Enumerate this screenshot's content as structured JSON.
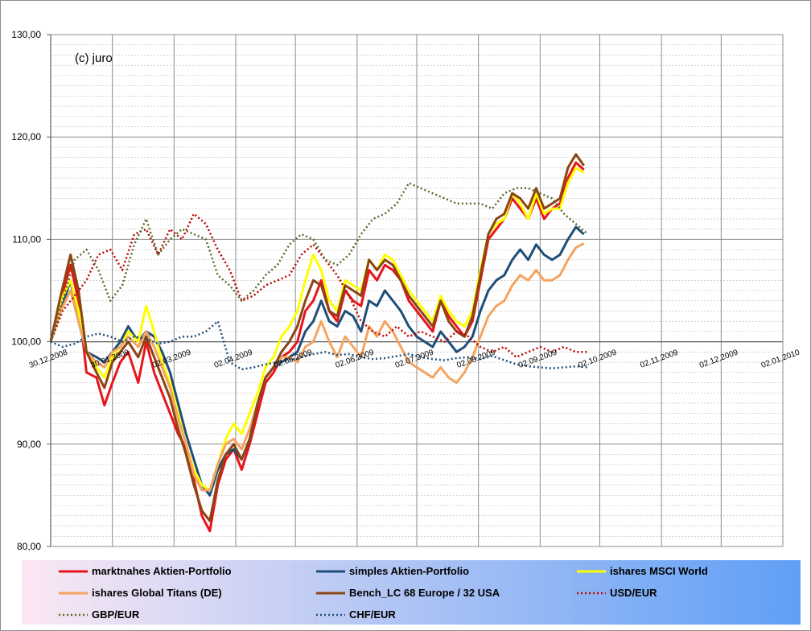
{
  "chart_data": {
    "type": "line",
    "annotation": "(c) juro",
    "title": "",
    "xlabel": "",
    "ylabel": "",
    "ylim": [
      80,
      130
    ],
    "y_ticks": [
      "80,00",
      "90,00",
      "100,00",
      "110,00",
      "120,00",
      "130,00"
    ],
    "y_tick_values": [
      80,
      90,
      100,
      110,
      120,
      130
    ],
    "x_ticks": [
      "30.12.2008",
      "30.01.2009",
      "02.03.2009",
      "02.04.2009",
      "02.05.2009",
      "02.06.2009",
      "02.07.2009",
      "02.08.2009",
      "02.09.2009",
      "02.10.2009",
      "02.11.2009",
      "02.12.2009",
      "02.01.2010"
    ],
    "x_tick_values": [
      0,
      31,
      62,
      93,
      123,
      154,
      184,
      215,
      246,
      276,
      307,
      337,
      368
    ],
    "xlim": [
      0,
      368
    ],
    "grid": true,
    "legend_position": "bottom",
    "series": [
      {
        "name": "marktnahes Aktien-Portfolio",
        "color": "#e8141c",
        "style": "solid",
        "width": 3,
        "x": [
          0,
          5,
          10,
          14,
          18,
          23,
          27,
          31,
          35,
          39,
          44,
          48,
          52,
          56,
          60,
          64,
          68,
          72,
          76,
          80,
          84,
          88,
          92,
          96,
          100,
          104,
          108,
          112,
          116,
          120,
          124,
          128,
          132,
          136,
          140,
          144,
          148,
          152,
          156,
          160,
          164,
          168,
          172,
          176,
          180,
          184,
          188,
          192,
          196,
          200,
          204,
          208,
          212,
          216,
          220,
          224,
          228,
          232,
          236,
          240,
          244,
          248,
          252,
          256,
          260,
          264,
          268
        ],
        "values": [
          100,
          104,
          107.5,
          104,
          97,
          96.5,
          93.8,
          96,
          98,
          99,
          96,
          100,
          97,
          95,
          93,
          91,
          89.6,
          86.5,
          83,
          81.5,
          86,
          88.5,
          89.5,
          87.5,
          90,
          93,
          96,
          97,
          98.5,
          99,
          100,
          103,
          104,
          106,
          103,
          102,
          105,
          104,
          103.5,
          107,
          106,
          107.5,
          107,
          106,
          104,
          103,
          102,
          101,
          104,
          102.5,
          101.5,
          100.5,
          102,
          106,
          110,
          111,
          112,
          114,
          113,
          112,
          114,
          112,
          113,
          113.5,
          116,
          117.5,
          116.8
        ]
      },
      {
        "name": "simples Aktien-Portfolio",
        "color": "#1f4e79",
        "style": "solid",
        "width": 3,
        "x": [
          0,
          5,
          10,
          14,
          18,
          23,
          27,
          31,
          35,
          39,
          44,
          48,
          52,
          56,
          60,
          64,
          68,
          72,
          76,
          80,
          84,
          88,
          92,
          96,
          100,
          104,
          108,
          112,
          116,
          120,
          124,
          128,
          132,
          136,
          140,
          144,
          148,
          152,
          156,
          160,
          164,
          168,
          172,
          176,
          180,
          184,
          188,
          192,
          196,
          200,
          204,
          208,
          212,
          216,
          220,
          224,
          228,
          232,
          236,
          240,
          244,
          248,
          252,
          256,
          260,
          264,
          268
        ],
        "values": [
          100,
          103,
          106,
          102,
          99,
          98.5,
          98,
          99,
          100,
          101.5,
          100,
          101,
          100.5,
          99,
          97,
          94,
          91,
          88.5,
          86,
          85,
          87.5,
          89,
          89.5,
          88.5,
          90.5,
          94,
          96.5,
          97.5,
          98,
          98.5,
          99,
          101,
          102,
          104,
          102,
          101.5,
          103,
          102.5,
          101,
          104,
          103.5,
          105,
          104,
          103,
          101.5,
          100.5,
          100,
          99.5,
          101,
          100,
          99,
          99.5,
          100.5,
          103,
          105,
          106,
          106.5,
          108,
          109,
          108,
          109.5,
          108.5,
          108,
          108.5,
          110,
          111.2,
          110.5
        ]
      },
      {
        "name": "ishares MSCI World",
        "color": "#ffff00",
        "style": "solid",
        "width": 3,
        "x": [
          0,
          5,
          10,
          14,
          18,
          23,
          27,
          31,
          35,
          39,
          44,
          48,
          52,
          56,
          60,
          64,
          68,
          72,
          76,
          80,
          84,
          88,
          92,
          96,
          100,
          104,
          108,
          112,
          116,
          120,
          124,
          128,
          132,
          136,
          140,
          144,
          148,
          152,
          156,
          160,
          164,
          168,
          172,
          176,
          180,
          184,
          188,
          192,
          196,
          200,
          204,
          208,
          212,
          216,
          220,
          224,
          228,
          232,
          236,
          240,
          244,
          248,
          252,
          256,
          260,
          264,
          268
        ],
        "values": [
          100,
          104,
          106,
          103,
          99,
          97.5,
          96.5,
          98.5,
          99.5,
          101,
          100,
          103.5,
          101,
          98,
          96,
          93,
          90,
          87.5,
          86,
          85.5,
          88,
          90.5,
          92,
          91,
          93,
          95,
          97.5,
          98.5,
          100.5,
          101.5,
          103,
          106,
          108.5,
          107,
          104,
          103,
          106,
          105.5,
          105,
          108,
          107,
          108.5,
          108,
          106.5,
          105,
          104,
          103,
          102,
          104.5,
          103,
          102,
          101.5,
          103,
          107,
          110.5,
          111.5,
          112,
          114.5,
          113.5,
          112,
          114.5,
          112.5,
          113,
          113,
          115.5,
          117,
          116.5
        ]
      },
      {
        "name": "ishares Global Titans (DE)",
        "color": "#f4a460",
        "style": "solid",
        "width": 3,
        "x": [
          0,
          5,
          10,
          14,
          18,
          23,
          27,
          31,
          35,
          39,
          44,
          48,
          52,
          56,
          60,
          64,
          68,
          72,
          76,
          80,
          84,
          88,
          92,
          96,
          100,
          104,
          108,
          112,
          116,
          120,
          124,
          128,
          132,
          136,
          140,
          144,
          148,
          152,
          156,
          160,
          164,
          168,
          172,
          176,
          180,
          184,
          188,
          192,
          196,
          200,
          204,
          208,
          212,
          216,
          220,
          224,
          228,
          232,
          236,
          240,
          244,
          248,
          252,
          256,
          260,
          264,
          268
        ],
        "values": [
          100,
          103,
          105,
          102,
          99,
          98,
          97.5,
          99,
          99.5,
          100.5,
          99.5,
          101,
          99.5,
          97.5,
          95.5,
          92.5,
          90,
          87,
          85.5,
          85.5,
          88,
          90,
          90.5,
          89.5,
          91.5,
          94,
          96.5,
          97.5,
          98.5,
          98.5,
          98,
          99.5,
          100,
          102,
          100,
          98.5,
          100.5,
          99.5,
          98.5,
          101.5,
          100.5,
          102,
          101,
          99.5,
          98,
          97.5,
          97,
          96.5,
          97.5,
          96.5,
          96,
          97,
          98.5,
          100.5,
          102.5,
          103.5,
          104,
          105.5,
          106.5,
          106,
          107,
          106,
          106,
          106.5,
          108,
          109.2,
          109.6
        ]
      },
      {
        "name": "Bench_LC  68 Europe / 32 USA",
        "color": "#8b4513",
        "style": "solid",
        "width": 3,
        "x": [
          0,
          5,
          10,
          14,
          18,
          23,
          27,
          31,
          35,
          39,
          44,
          48,
          52,
          56,
          60,
          64,
          68,
          72,
          76,
          80,
          84,
          88,
          92,
          96,
          100,
          104,
          108,
          112,
          116,
          120,
          124,
          128,
          132,
          136,
          140,
          144,
          148,
          152,
          156,
          160,
          164,
          168,
          172,
          176,
          180,
          184,
          188,
          192,
          196,
          200,
          204,
          208,
          212,
          216,
          220,
          224,
          228,
          232,
          236,
          240,
          244,
          248,
          252,
          256,
          260,
          264,
          268
        ],
        "values": [
          100,
          104.5,
          108.5,
          105,
          99,
          97,
          95.5,
          98,
          99,
          100,
          98.5,
          100.5,
          98.5,
          96.5,
          94.5,
          91.5,
          89,
          86,
          83.5,
          82.5,
          86.5,
          89,
          90,
          88.5,
          90.5,
          94,
          96.5,
          97.5,
          99,
          100,
          101.5,
          104,
          106,
          105.5,
          103,
          102.5,
          105.5,
          105,
          104.5,
          108,
          107,
          108,
          107.5,
          106,
          104.5,
          103.5,
          102.5,
          101.5,
          104,
          102,
          101,
          100.5,
          102.5,
          106.5,
          110.5,
          112,
          112.5,
          114.5,
          114,
          113,
          115,
          113,
          113.5,
          114,
          117,
          118.3,
          117.2
        ]
      },
      {
        "name": "USD/EUR",
        "color": "#c00000",
        "style": "dotted",
        "width": 2.5,
        "x": [
          0,
          6,
          12,
          18,
          24,
          30,
          36,
          42,
          48,
          54,
          60,
          66,
          72,
          78,
          84,
          90,
          96,
          102,
          108,
          114,
          120,
          126,
          132,
          138,
          144,
          150,
          156,
          162,
          168,
          174,
          180,
          186,
          192,
          198,
          204,
          210,
          216,
          222,
          228,
          234,
          240,
          246,
          252,
          258,
          264,
          270
        ],
        "values": [
          100,
          103,
          104.5,
          106,
          108.5,
          109,
          107,
          110.5,
          111,
          108.5,
          111,
          110,
          112.5,
          111.5,
          109,
          107,
          104,
          104.5,
          105.5,
          106,
          106.5,
          108.5,
          109.5,
          108,
          106.5,
          104.5,
          102,
          101,
          100.5,
          101.5,
          100.5,
          101,
          100.5,
          100,
          101,
          100.5,
          99.5,
          99,
          99.5,
          98.5,
          99,
          99.5,
          99,
          99.5,
          99,
          99
        ]
      },
      {
        "name": "GBP/EUR",
        "color": "#5a6a2a",
        "style": "dotted",
        "width": 2.5,
        "x": [
          0,
          6,
          12,
          18,
          24,
          30,
          36,
          42,
          48,
          54,
          60,
          66,
          72,
          78,
          84,
          90,
          96,
          102,
          108,
          114,
          120,
          126,
          132,
          138,
          144,
          150,
          156,
          162,
          168,
          174,
          180,
          186,
          192,
          198,
          204,
          210,
          216,
          222,
          228,
          234,
          240,
          246,
          252,
          258,
          264,
          270
        ],
        "values": [
          100,
          104,
          108,
          109,
          107,
          104,
          105.5,
          109.5,
          112,
          108.5,
          110,
          111,
          110.5,
          110,
          106.5,
          105.5,
          104,
          105,
          106.5,
          107.5,
          109.5,
          110.5,
          110,
          108,
          107.5,
          108.5,
          110.5,
          112,
          112.5,
          113.5,
          115.5,
          115,
          114.5,
          114,
          113.5,
          113.5,
          113.5,
          113,
          114.5,
          115,
          115,
          114.5,
          114,
          112.5,
          111.5,
          110.5
        ]
      },
      {
        "name": "CHF/EUR",
        "color": "#1f4e79",
        "style": "dotted",
        "width": 2.5,
        "x": [
          0,
          6,
          12,
          18,
          24,
          30,
          36,
          42,
          48,
          54,
          60,
          66,
          72,
          78,
          84,
          90,
          96,
          102,
          108,
          114,
          120,
          126,
          132,
          138,
          144,
          150,
          156,
          162,
          168,
          174,
          180,
          186,
          192,
          198,
          204,
          210,
          216,
          222,
          228,
          234,
          240,
          246,
          252,
          258,
          264,
          270
        ],
        "values": [
          100,
          99.5,
          99.8,
          100.5,
          100.8,
          100.5,
          100,
          100.5,
          100.3,
          99.8,
          100,
          100.5,
          100.5,
          101,
          102,
          98,
          97.3,
          97.5,
          97.8,
          98,
          98.2,
          98.5,
          98.8,
          99,
          98.7,
          98.8,
          98.5,
          98.3,
          98.4,
          98.6,
          98.8,
          98.5,
          98.3,
          98.2,
          98.4,
          98.5,
          98.3,
          98.6,
          98.2,
          97.8,
          97.6,
          97.5,
          97.4,
          97.5,
          97.6,
          97.5
        ]
      }
    ]
  }
}
